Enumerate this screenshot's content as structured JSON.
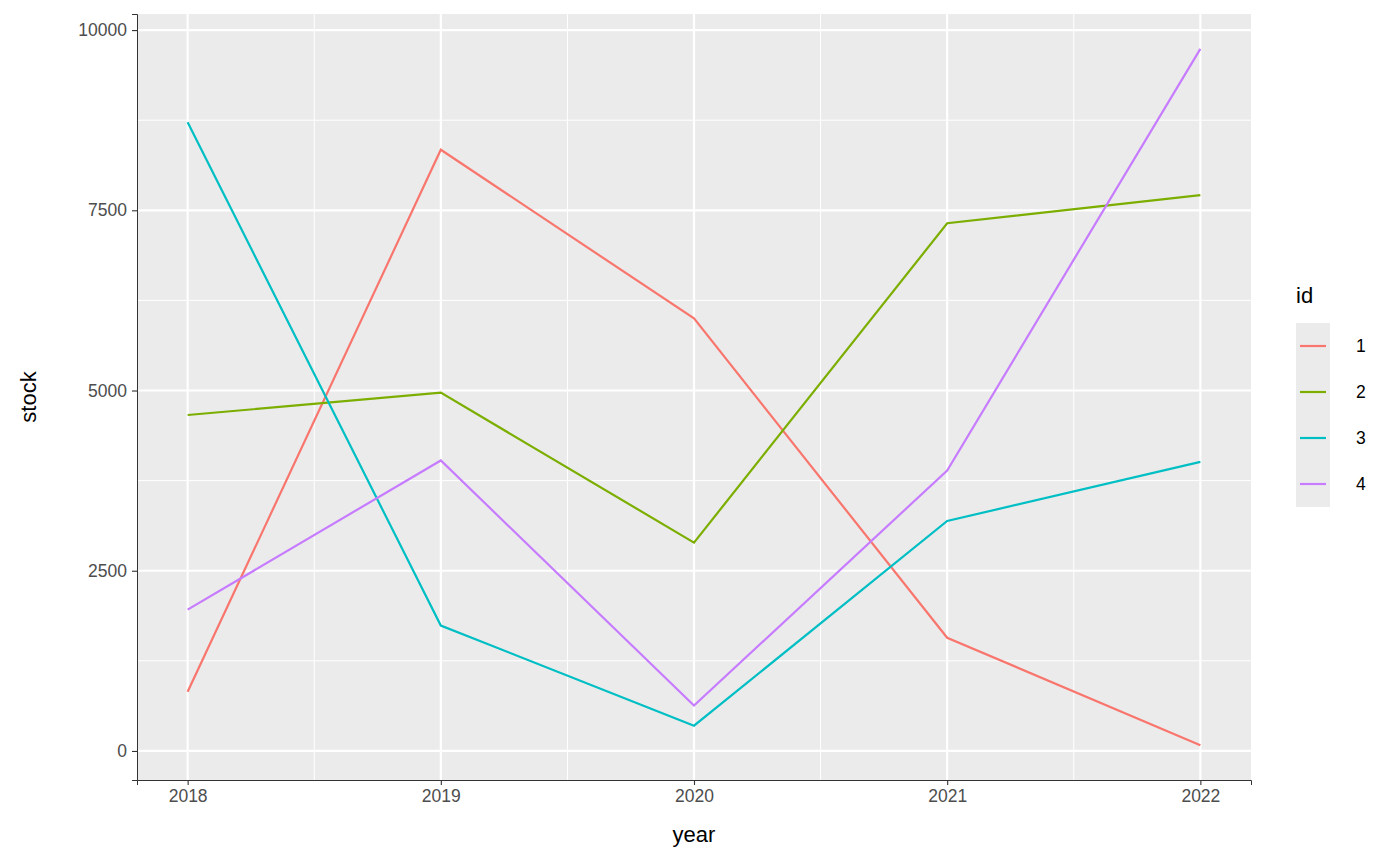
{
  "chart_data": {
    "type": "line",
    "x_label": "year",
    "y_label": "stock",
    "legend_title": "id",
    "x": [
      2018,
      2019,
      2020,
      2021,
      2022
    ],
    "series": [
      {
        "name": "1",
        "color": "#F8766D",
        "values": [
          820,
          8340,
          6000,
          1570,
          80
        ]
      },
      {
        "name": "2",
        "color": "#7CAE00",
        "values": [
          4660,
          4970,
          2890,
          7320,
          7710
        ]
      },
      {
        "name": "3",
        "color": "#00BFC4",
        "values": [
          8720,
          1740,
          350,
          3190,
          4010
        ]
      },
      {
        "name": "4",
        "color": "#C77CFF",
        "values": [
          1960,
          4030,
          630,
          3890,
          9740
        ]
      }
    ],
    "xlim": [
      2017.8,
      2022.2
    ],
    "xticks": [
      2018,
      2019,
      2020,
      2021,
      2022
    ],
    "ylim": [
      -403,
      10223
    ],
    "yticks": [
      0,
      2500,
      5000,
      7500,
      10000
    ],
    "grid": true,
    "legend": "right"
  }
}
